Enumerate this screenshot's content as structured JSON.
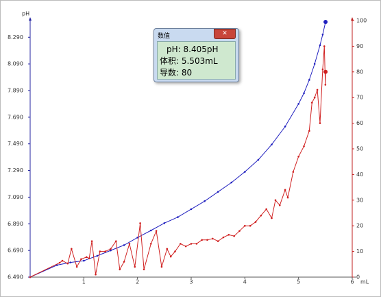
{
  "chart_data": {
    "type": "line",
    "xlabel": "mL",
    "ylabel": "pH",
    "xlim": [
      0,
      6
    ],
    "xticks": [
      1,
      2,
      3,
      4,
      5,
      6
    ],
    "ylim": [
      6.49,
      8.415
    ],
    "yticks": [
      {
        "value": 6.49,
        "label": "6.490"
      },
      {
        "value": 6.69,
        "label": "6.690"
      },
      {
        "value": 6.89,
        "label": "6.890"
      },
      {
        "value": 7.09,
        "label": "7.090"
      },
      {
        "value": 7.29,
        "label": "7.290"
      },
      {
        "value": 7.49,
        "label": "7.490"
      },
      {
        "value": 7.69,
        "label": "7.690"
      },
      {
        "value": 7.89,
        "label": "7.890"
      },
      {
        "value": 8.09,
        "label": "8.090"
      },
      {
        "value": 8.29,
        "label": "8.290"
      }
    ],
    "y2lim": [
      0,
      100
    ],
    "y2ticks": [
      0,
      10,
      20,
      30,
      40,
      50,
      60,
      70,
      80,
      90,
      100
    ],
    "series": [
      {
        "color": "#1f1fbf",
        "x": [
          0,
          0.5,
          0.75,
          1.0,
          1.25,
          1.5,
          1.75,
          2.0,
          2.25,
          2.5,
          2.75,
          3.0,
          3.25,
          3.5,
          3.75,
          4.0,
          4.25,
          4.5,
          4.75,
          5.0,
          5.1,
          5.2,
          5.3,
          5.4,
          5.45,
          5.503
        ],
        "values": [
          6.49,
          6.58,
          6.6,
          6.613,
          6.65,
          6.69,
          6.73,
          6.787,
          6.84,
          6.895,
          6.94,
          7.0,
          7.06,
          7.13,
          7.2,
          7.28,
          7.37,
          7.485,
          7.62,
          7.79,
          7.87,
          7.97,
          8.09,
          8.23,
          8.31,
          8.405
        ]
      },
      {
        "color": "#d02020",
        "axis": "y2",
        "x": [
          0,
          0.55,
          0.6,
          0.7,
          0.77,
          0.87,
          0.95,
          1.05,
          1.1,
          1.15,
          1.22,
          1.3,
          1.4,
          1.5,
          1.6,
          1.67,
          1.75,
          1.85,
          1.95,
          2.05,
          2.12,
          2.25,
          2.35,
          2.45,
          2.55,
          2.62,
          2.7,
          2.8,
          2.9,
          3.0,
          3.1,
          3.2,
          3.3,
          3.4,
          3.5,
          3.6,
          3.7,
          3.8,
          3.9,
          4.0,
          4.1,
          4.2,
          4.3,
          4.4,
          4.5,
          4.57,
          4.65,
          4.75,
          4.8,
          4.9,
          5.0,
          5.1,
          5.2,
          5.25,
          5.3,
          5.35,
          5.4,
          5.45,
          5.48,
          5.5,
          5.503
        ],
        "values": [
          0,
          5.6,
          6.4,
          5.3,
          11,
          4,
          7,
          7.8,
          7.3,
          14,
          1,
          10,
          10,
          11,
          14,
          3,
          6,
          13,
          4,
          21,
          3,
          13,
          18,
          4,
          11,
          8,
          10,
          13,
          12,
          13,
          13,
          14.5,
          14.5,
          15,
          14,
          15.5,
          16.5,
          16,
          18,
          20,
          20,
          21.5,
          24,
          26.5,
          23,
          30,
          28,
          34,
          31,
          41,
          47,
          51,
          57,
          68,
          70,
          73,
          60,
          81,
          90,
          75,
          80
        ]
      }
    ]
  },
  "dialog": {
    "title": "数值",
    "lines": [
      "pH: 8.405pH",
      "体积: 5.503mL",
      "导数: 80"
    ]
  }
}
